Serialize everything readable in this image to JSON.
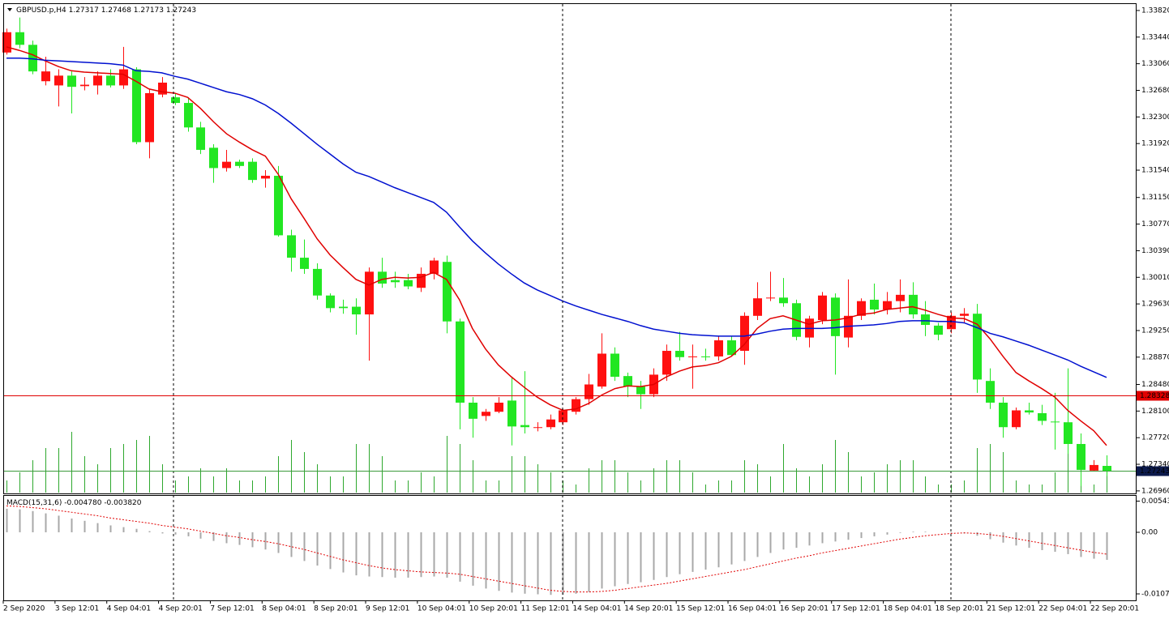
{
  "chart_data": [
    {
      "type": "candlestick",
      "title": "GBPUSD.p,H4",
      "header_values": [
        1.27317,
        1.27468,
        1.27173,
        1.27243
      ],
      "categories": [
        "2 Sep 2020",
        null,
        null,
        null,
        "3 Sep 12:01",
        null,
        null,
        null,
        "4 Sep 04:01",
        null,
        null,
        null,
        "4 Sep 20:01",
        null,
        null,
        null,
        "7 Sep 12:01",
        null,
        null,
        null,
        "8 Sep 04:01",
        null,
        null,
        null,
        "8 Sep 20:01",
        null,
        null,
        null,
        "9 Sep 12:01",
        null,
        null,
        null,
        "10 Sep 04:01",
        null,
        null,
        null,
        "10 Sep 20:01",
        null,
        null,
        null,
        "11 Sep 12:01",
        null,
        null,
        null,
        "14 Sep 04:01",
        null,
        null,
        null,
        "14 Sep 20:01",
        null,
        null,
        null,
        "15 Sep 12:01",
        null,
        null,
        null,
        "16 Sep 04:01",
        null,
        null,
        null,
        "16 Sep 20:01",
        null,
        null,
        null,
        "17 Sep 12:01",
        null,
        null,
        null,
        "18 Sep 04:01",
        null,
        null,
        null,
        "18 Sep 20:01",
        null,
        null,
        null,
        "21 Sep 12:01",
        null,
        null,
        null,
        "22 Sep 04:01",
        null,
        null,
        null,
        "22 Sep 20:01",
        null
      ],
      "open": [
        1.3322,
        1.3351,
        1.3333,
        1.3281,
        1.3275,
        1.3289,
        1.3274,
        1.3275,
        1.3289,
        1.3275,
        1.3298,
        1.3194,
        1.3262,
        1.3258,
        1.325,
        1.3215,
        1.3186,
        1.3157,
        1.3166,
        1.3166,
        1.3142,
        1.3146,
        1.3061,
        1.3029,
        1.3013,
        1.2975,
        1.2959,
        1.2959,
        1.2948,
        1.3009,
        1.2997,
        1.2997,
        1.2986,
        1.3006,
        1.3023,
        1.2938,
        1.2822,
        1.2803,
        1.2809,
        1.2825,
        1.279,
        1.2786,
        1.2787,
        1.2794,
        1.2809,
        1.2827,
        1.2845,
        1.2892,
        1.286,
        1.2845,
        1.2834,
        1.2862,
        1.2896,
        1.2887,
        1.2888,
        1.2888,
        1.2911,
        1.2896,
        1.2946,
        1.2971,
        1.2972,
        1.2964,
        1.2915,
        1.294,
        1.2972,
        1.2915,
        1.2946,
        1.2969,
        1.2955,
        1.2967,
        1.2976,
        1.2948,
        1.2932,
        1.2927,
        1.2946,
        1.2949,
        1.2853,
        1.2822,
        1.2787,
        1.2811,
        1.2807,
        1.2795,
        1.2794,
        1.2763,
        1.2725,
        1.27317
      ],
      "high": [
        1.3356,
        1.3372,
        1.3339,
        1.3316,
        1.3298,
        1.3295,
        1.3287,
        1.3295,
        1.3298,
        1.333,
        1.3301,
        1.327,
        1.3287,
        1.3264,
        1.3258,
        1.3223,
        1.3191,
        1.3183,
        1.3169,
        1.3171,
        1.3154,
        1.316,
        1.3069,
        1.3055,
        1.3021,
        1.2978,
        1.2969,
        1.2971,
        1.3015,
        1.3029,
        1.3009,
        1.3006,
        1.3015,
        1.3029,
        1.3032,
        1.2942,
        1.283,
        1.2813,
        1.283,
        1.2859,
        1.2867,
        1.2794,
        1.2805,
        1.2813,
        1.283,
        1.2863,
        1.2921,
        1.2901,
        1.2865,
        1.2853,
        1.2871,
        1.2905,
        1.2923,
        1.2905,
        1.2899,
        1.2917,
        1.2917,
        1.2951,
        1.2994,
        1.3009,
        1.3,
        1.2969,
        1.2946,
        1.298,
        1.2978,
        1.2998,
        1.2971,
        1.2992,
        1.298,
        1.2998,
        1.2994,
        1.2967,
        1.2936,
        1.2951,
        1.2957,
        1.2963,
        1.2871,
        1.283,
        1.2815,
        1.2822,
        1.2819,
        1.2836,
        1.2871,
        1.2778,
        1.274,
        1.27468
      ],
      "low": [
        1.3319,
        1.3328,
        1.3291,
        1.3275,
        1.3245,
        1.3235,
        1.3268,
        1.3262,
        1.3272,
        1.327,
        1.3191,
        1.3171,
        1.3258,
        1.3247,
        1.3209,
        1.3177,
        1.3136,
        1.3152,
        1.3157,
        1.3136,
        1.3129,
        1.3059,
        1.3009,
        1.3006,
        1.2969,
        1.2951,
        1.2949,
        1.2919,
        1.2882,
        1.2986,
        1.2986,
        1.2984,
        1.298,
        1.2998,
        1.2921,
        1.2784,
        1.2772,
        1.2796,
        1.2807,
        1.2761,
        1.2778,
        1.2781,
        1.2784,
        1.279,
        1.2805,
        1.2819,
        1.2842,
        1.2853,
        1.283,
        1.2813,
        1.283,
        1.2853,
        1.2882,
        1.2842,
        1.2882,
        1.2882,
        1.2888,
        1.2876,
        1.294,
        1.2967,
        1.2959,
        1.2911,
        1.2901,
        1.2934,
        1.2862,
        1.2901,
        1.294,
        1.2948,
        1.2948,
        1.2951,
        1.2942,
        1.2917,
        1.2911,
        1.2921,
        1.2936,
        1.2836,
        1.2813,
        1.2772,
        1.2784,
        1.2805,
        1.279,
        1.2755,
        1.2749,
        1.2703,
        1.2724,
        1.27173
      ],
      "close": [
        1.3351,
        1.3333,
        1.3295,
        1.3295,
        1.3289,
        1.3273,
        1.3276,
        1.3289,
        1.3275,
        1.3298,
        1.3194,
        1.3264,
        1.3279,
        1.325,
        1.3215,
        1.3183,
        1.3157,
        1.3166,
        1.316,
        1.314,
        1.3146,
        1.3061,
        1.3029,
        1.3013,
        1.2975,
        1.2957,
        1.2957,
        1.2948,
        1.3009,
        1.2992,
        1.2994,
        1.2988,
        1.3006,
        1.3025,
        1.2938,
        1.2822,
        1.2799,
        1.2809,
        1.2822,
        1.2788,
        1.2787,
        1.2787,
        1.2798,
        1.2811,
        1.2827,
        1.2848,
        1.2892,
        1.2859,
        1.2845,
        1.2834,
        1.2862,
        1.2896,
        1.2887,
        1.2888,
        1.2887,
        1.2911,
        1.289,
        1.2946,
        1.2971,
        1.2972,
        1.2964,
        1.2916,
        1.2942,
        1.2975,
        1.2917,
        1.2946,
        1.2967,
        1.2955,
        1.2967,
        1.2976,
        1.2948,
        1.2933,
        1.2919,
        1.2946,
        1.2949,
        1.2855,
        1.2822,
        1.2787,
        1.2811,
        1.2808,
        1.2796,
        1.2794,
        1.2763,
        1.2726,
        1.2733,
        1.27243
      ],
      "up_color": "#ff1010",
      "down_color": "#22e622",
      "series": [
        {
          "color": "#e00000",
          "values": [
            1.333,
            1.3325,
            1.3319,
            1.331,
            1.3302,
            1.3296,
            1.3294,
            1.3293,
            1.3292,
            1.3291,
            1.3281,
            1.327,
            1.3266,
            1.3264,
            1.3258,
            1.3242,
            1.3223,
            1.3206,
            1.3194,
            1.3183,
            1.3174,
            1.3148,
            1.3113,
            1.3085,
            1.3056,
            1.3033,
            1.3015,
            1.2998,
            1.299,
            1.2998,
            1.3001,
            1.3,
            1.3001,
            1.3008,
            1.2998,
            1.2969,
            1.2928,
            1.2899,
            1.2876,
            1.2859,
            1.2844,
            1.283,
            1.2819,
            1.2811,
            1.2813,
            1.2821,
            1.2833,
            1.2842,
            1.2846,
            1.2845,
            1.2848,
            1.2859,
            1.2867,
            1.2873,
            1.2875,
            1.2879,
            1.2888,
            1.2905,
            1.2928,
            1.2942,
            1.2946,
            1.294,
            1.2934,
            1.2939,
            1.294,
            1.2943,
            1.2948,
            1.295,
            1.2955,
            1.2957,
            1.2959,
            1.2954,
            1.2948,
            1.2943,
            1.2942,
            1.2934,
            1.2913,
            1.2888,
            1.2865,
            1.2853,
            1.2842,
            1.283,
            1.2811,
            1.2796,
            1.2782,
            1.2761
          ]
        },
        {
          "color": "#0010d0",
          "values": [
            1.3314,
            1.3314,
            1.3313,
            1.3311,
            1.331,
            1.3309,
            1.3308,
            1.3307,
            1.3306,
            1.3304,
            1.3296,
            1.3295,
            1.3293,
            1.3288,
            1.3284,
            1.3278,
            1.3272,
            1.3266,
            1.3262,
            1.3256,
            1.3247,
            1.3235,
            1.3221,
            1.3206,
            1.3191,
            1.3177,
            1.3163,
            1.3151,
            1.3145,
            1.3137,
            1.3129,
            1.3122,
            1.3115,
            1.3108,
            1.3094,
            1.3073,
            1.3053,
            1.3036,
            1.302,
            1.3006,
            1.2993,
            1.2983,
            1.2975,
            1.2967,
            1.296,
            1.2954,
            1.2948,
            1.2943,
            1.2938,
            1.2932,
            1.2927,
            1.2924,
            1.2921,
            1.2919,
            1.2918,
            1.2917,
            1.2917,
            1.2917,
            1.292,
            1.2924,
            1.2927,
            1.2928,
            1.2928,
            1.2928,
            1.2929,
            1.2931,
            1.2932,
            1.2933,
            1.2935,
            1.2938,
            1.2939,
            1.2939,
            1.2938,
            1.2938,
            1.2936,
            1.2929,
            1.2921,
            1.2916,
            1.291,
            1.2904,
            1.2897,
            1.289,
            1.2883,
            1.2874,
            1.2866,
            1.2858
          ]
        }
      ],
      "volumes": {
        "color": "#2ea82e",
        "values": [
          15,
          25,
          40,
          55,
          55,
          75,
          45,
          35,
          55,
          60,
          65,
          70,
          35,
          15,
          20,
          30,
          20,
          30,
          15,
          15,
          20,
          45,
          65,
          50,
          35,
          20,
          20,
          60,
          60,
          45,
          15,
          15,
          25,
          20,
          70,
          60,
          40,
          15,
          15,
          45,
          45,
          35,
          25,
          15,
          10,
          30,
          40,
          40,
          25,
          15,
          30,
          40,
          40,
          25,
          10,
          15,
          15,
          40,
          35,
          20,
          60,
          30,
          20,
          35,
          65,
          50,
          20,
          25,
          35,
          40,
          40,
          20,
          10,
          10,
          15,
          55,
          60,
          50,
          15,
          10,
          10,
          25,
          60,
          30,
          10,
          30
        ]
      },
      "hlines": [
        {
          "value": 1.28328,
          "color": "#e00000",
          "label_color": "#e00000"
        },
        {
          "value": 1.27243,
          "color": "#3c9a3c",
          "label_color": "#0c1a4c"
        }
      ],
      "ylim": [
        1.26924,
        1.33912
      ],
      "yticks": [
        {
          "value": 1.3382,
          "label": "1.33820"
        },
        {
          "value": 1.3344,
          "label": "1.33440"
        },
        {
          "value": 1.3306,
          "label": "1.33060"
        },
        {
          "value": 1.3268,
          "label": "1.32680"
        },
        {
          "value": 1.323,
          "label": "1.32300"
        },
        {
          "value": 1.3192,
          "label": "1.31920"
        },
        {
          "value": 1.3154,
          "label": "1.31540"
        },
        {
          "value": 1.3115,
          "label": "1.31150"
        },
        {
          "value": 1.3077,
          "label": "1.30770"
        },
        {
          "value": 1.3039,
          "label": "1.30390"
        },
        {
          "value": 1.3001,
          "label": "1.30010"
        },
        {
          "value": 1.2963,
          "label": "1.29630"
        },
        {
          "value": 1.2925,
          "label": "1.29250"
        },
        {
          "value": 1.2887,
          "label": "1.28870"
        },
        {
          "value": 1.2848,
          "label": "1.28480"
        },
        {
          "value": 1.281,
          "label": "1.28100"
        },
        {
          "value": 1.2772,
          "label": "1.27720"
        },
        {
          "value": 1.2734,
          "label": "1.27340"
        },
        {
          "value": 1.2696,
          "label": "1.26960"
        }
      ]
    },
    {
      "type": "macd",
      "title": "MACD(15,31,6)",
      "header_values": [
        {
          "value": -0.00478,
          "label": "-0.004780"
        },
        {
          "value": -0.00382,
          "label": "-0.003820"
        }
      ],
      "histogram": {
        "color": "#a8a8a8",
        "values": [
          0.0041,
          0.004,
          0.0037,
          0.0033,
          0.0029,
          0.0024,
          0.002,
          0.0016,
          0.0012,
          0.0009,
          0.0006,
          0.0002,
          -0.0002,
          -0.0004,
          -0.0007,
          -0.0011,
          -0.0015,
          -0.0019,
          -0.0022,
          -0.0026,
          -0.003,
          -0.0036,
          -0.0043,
          -0.005,
          -0.0058,
          -0.0064,
          -0.007,
          -0.0075,
          -0.0077,
          -0.0078,
          -0.0079,
          -0.0079,
          -0.0078,
          -0.0077,
          -0.0079,
          -0.0086,
          -0.0093,
          -0.0098,
          -0.0102,
          -0.0105,
          -0.0107,
          -0.0108,
          -0.0109,
          -0.0109,
          -0.0107,
          -0.0104,
          -0.0098,
          -0.0094,
          -0.009,
          -0.0087,
          -0.0083,
          -0.0078,
          -0.0073,
          -0.0069,
          -0.0065,
          -0.0061,
          -0.0056,
          -0.005,
          -0.0043,
          -0.0036,
          -0.003,
          -0.0027,
          -0.0023,
          -0.0019,
          -0.0016,
          -0.0013,
          -0.001,
          -0.0007,
          -0.0004,
          -0.0001,
          0.0001,
          0.0001,
          0.0,
          -0.0001,
          -0.0002,
          -0.0006,
          -0.0012,
          -0.0018,
          -0.0023,
          -0.0027,
          -0.0031,
          -0.0034,
          -0.0038,
          -0.0043,
          -0.0046,
          -0.0048
        ]
      },
      "signal": {
        "color": "#e00000",
        "values": [
          0.0046,
          0.0045,
          0.0043,
          0.0041,
          0.0038,
          0.0035,
          0.0032,
          0.0029,
          0.0025,
          0.0022,
          0.0019,
          0.0016,
          0.0012,
          0.0009,
          0.0006,
          0.0002,
          -0.0002,
          -0.0006,
          -0.0009,
          -0.0013,
          -0.0016,
          -0.002,
          -0.0025,
          -0.003,
          -0.0036,
          -0.0042,
          -0.0048,
          -0.0053,
          -0.0058,
          -0.0062,
          -0.0065,
          -0.0067,
          -0.0069,
          -0.007,
          -0.0071,
          -0.0073,
          -0.0077,
          -0.0081,
          -0.0085,
          -0.0089,
          -0.0093,
          -0.0097,
          -0.0101,
          -0.0103,
          -0.0104,
          -0.0104,
          -0.0103,
          -0.0101,
          -0.0098,
          -0.0095,
          -0.0092,
          -0.0089,
          -0.0085,
          -0.0081,
          -0.0077,
          -0.0073,
          -0.0069,
          -0.0065,
          -0.006,
          -0.0055,
          -0.005,
          -0.0045,
          -0.0041,
          -0.0036,
          -0.0032,
          -0.0028,
          -0.0024,
          -0.002,
          -0.0016,
          -0.0012,
          -0.0009,
          -0.0006,
          -0.0004,
          -0.0002,
          -0.0001,
          -0.0002,
          -0.0004,
          -0.0007,
          -0.0011,
          -0.0015,
          -0.0019,
          -0.0023,
          -0.0027,
          -0.0031,
          -0.0035,
          -0.0038
        ]
      },
      "ylim": [
        -0.01186,
        0.00635
      ],
      "yticks": [
        0.005431,
        {
          "value": 0,
          "label": "0.00"
        },
        -0.01073
      ]
    }
  ]
}
